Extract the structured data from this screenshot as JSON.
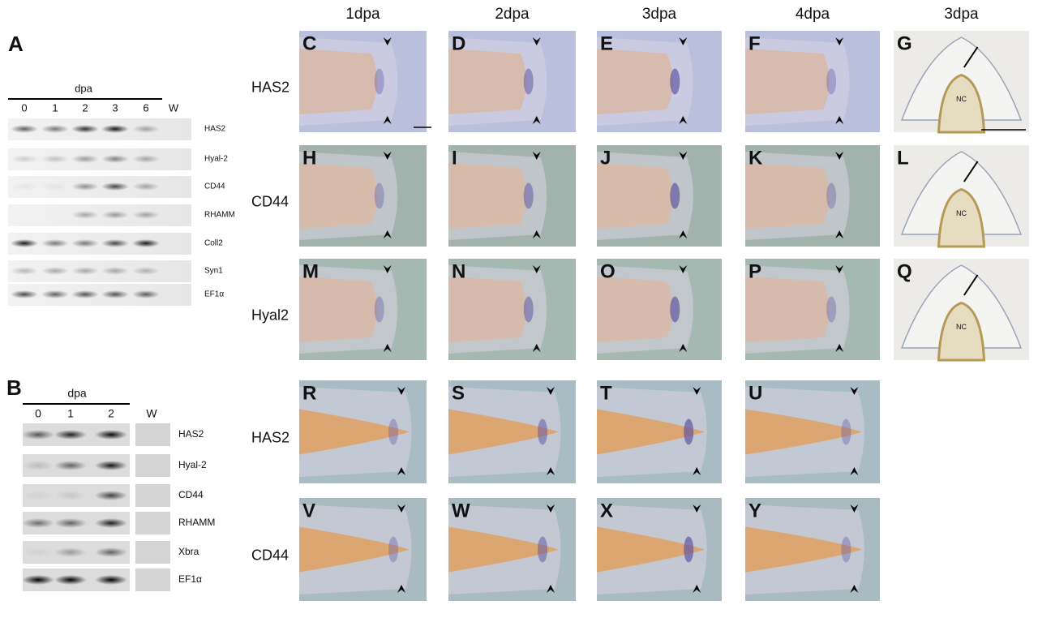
{
  "panel_a": {
    "label": "A",
    "axis_title": "dpa",
    "lanes": [
      "0",
      "1",
      "2",
      "3",
      "6",
      "W"
    ],
    "genes": [
      "HAS2",
      "Hyal-2",
      "CD44",
      "RHAMM",
      "Coll2",
      "Syn1",
      "EF1α"
    ]
  },
  "panel_b": {
    "label": "B",
    "axis_title": "dpa",
    "lanes": [
      "0",
      "1",
      "2",
      "W"
    ],
    "genes": [
      "HAS2",
      "Hyal-2",
      "CD44",
      "RHAMM",
      "Xbra",
      "EF1α"
    ]
  },
  "column_headers": [
    "1dpa",
    "2dpa",
    "3dpa",
    "4dpa",
    "3dpa"
  ],
  "row_labels": [
    "HAS2",
    "CD44",
    "Hyal2",
    "HAS2",
    "CD44"
  ],
  "panels": [
    [
      "C",
      "D",
      "E",
      "F",
      "G"
    ],
    [
      "H",
      "I",
      "J",
      "K",
      "L"
    ],
    [
      "M",
      "N",
      "O",
      "P",
      "Q"
    ],
    [
      "R",
      "S",
      "T",
      "U"
    ],
    [
      "V",
      "W",
      "X",
      "Y"
    ]
  ],
  "section_labels": [
    "NC",
    "NC",
    "NC"
  ]
}
